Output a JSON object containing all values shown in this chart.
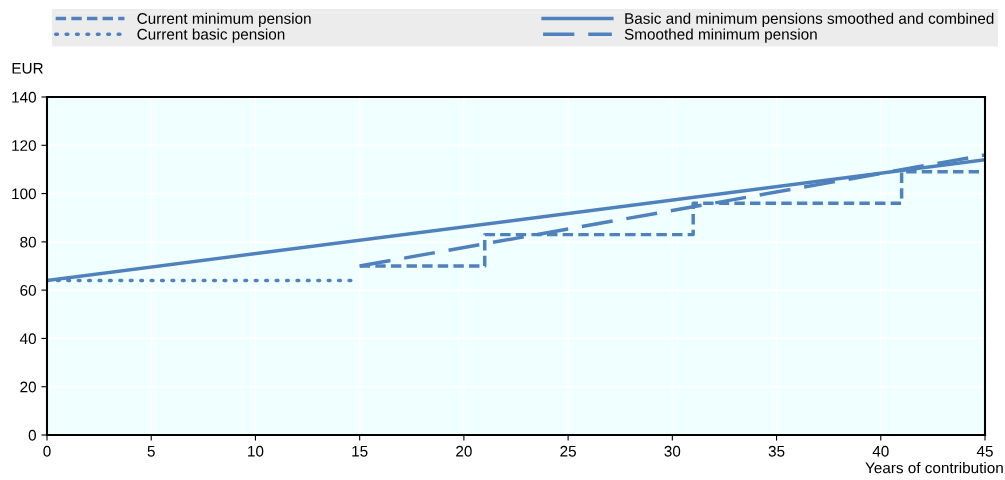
{
  "chart_data": {
    "type": "line",
    "xlabel": "Years of contribution",
    "ylabel": "EUR",
    "xlim": [
      0,
      45
    ],
    "xticks": [
      0,
      5,
      10,
      15,
      20,
      25,
      30,
      35,
      40,
      45
    ],
    "ylim": [
      0,
      140
    ],
    "yticks": [
      0,
      20,
      40,
      60,
      80,
      100,
      120,
      140
    ],
    "grid": true,
    "legend": "top",
    "marker": "none",
    "series": [
      {
        "name": "Current minimum pension",
        "color": "#4f81bd",
        "line_style": "dashed",
        "x": [
          15,
          21,
          21,
          31,
          31,
          41,
          41,
          45
        ],
        "values": [
          70,
          70,
          83,
          83,
          96,
          96,
          109,
          109
        ]
      },
      {
        "name": "Current basic pension",
        "color": "#4f81bd",
        "line_style": "dotted",
        "x": [
          0,
          14.6
        ],
        "values": [
          64,
          64
        ]
      },
      {
        "name": "Basic and minimum pensions smoothed and combined",
        "color": "#4f81bd",
        "line_style": "solid",
        "x": [
          0,
          45
        ],
        "values": [
          64,
          114
        ]
      },
      {
        "name": "Smoothed minimum pension",
        "color": "#4f81bd",
        "line_style": "longdash",
        "x": [
          15,
          45
        ],
        "values": [
          70,
          116
        ]
      }
    ]
  }
}
